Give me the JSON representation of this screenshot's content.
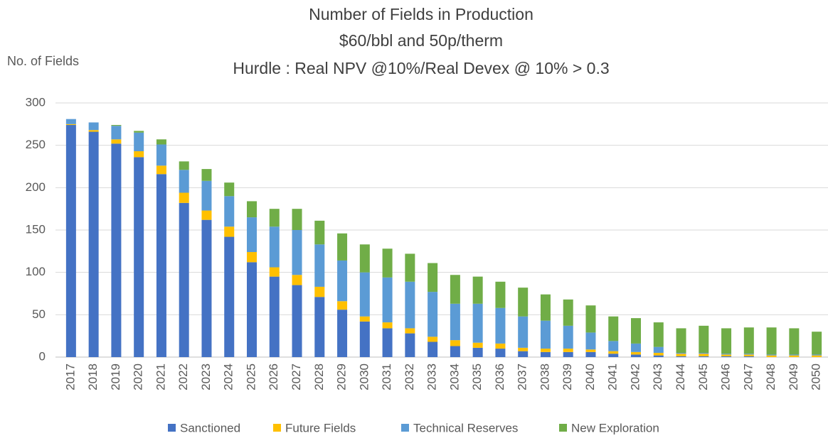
{
  "chart_data": {
    "type": "stacked_bar",
    "title": [
      "Number of Fields in Production",
      "$60/bbl and 50p/therm",
      "Hurdle : Real NPV @10%/Real Devex @ 10% > 0.3"
    ],
    "y_label": "No. of Fields",
    "categories": [
      "2017",
      "2018",
      "2019",
      "2020",
      "2021",
      "2022",
      "2023",
      "2024",
      "2025",
      "2026",
      "2027",
      "2028",
      "2029",
      "2030",
      "2031",
      "2032",
      "2033",
      "2034",
      "2035",
      "2036",
      "2037",
      "2038",
      "2039",
      "2040",
      "2041",
      "2042",
      "2043",
      "2044",
      "2045",
      "2046",
      "2047",
      "2048",
      "2049",
      "2050"
    ],
    "series": [
      {
        "name": "Sanctioned",
        "color": "#4472c4",
        "values": [
          274,
          266,
          252,
          236,
          216,
          182,
          162,
          142,
          112,
          95,
          85,
          71,
          56,
          42,
          34,
          28,
          18,
          13,
          11,
          10,
          7,
          6,
          6,
          6,
          4,
          3,
          2,
          1,
          1,
          1,
          1,
          0,
          0,
          0
        ]
      },
      {
        "name": "Future Fields",
        "color": "#ffc000",
        "values": [
          1,
          2,
          5,
          7,
          10,
          12,
          11,
          12,
          12,
          11,
          12,
          12,
          10,
          6,
          7,
          6,
          6,
          7,
          6,
          6,
          4,
          4,
          4,
          3,
          3,
          3,
          3,
          3,
          3,
          2,
          2,
          2,
          2,
          2
        ]
      },
      {
        "name": "Technical Reserves",
        "color": "#5b9bd5",
        "values": [
          6,
          9,
          16,
          22,
          25,
          27,
          35,
          36,
          41,
          48,
          53,
          50,
          48,
          52,
          53,
          55,
          53,
          43,
          46,
          42,
          37,
          33,
          27,
          20,
          12,
          10,
          7,
          1,
          1,
          1,
          1,
          1,
          1,
          1
        ]
      },
      {
        "name": "New Exploration",
        "color": "#70ad47",
        "values": [
          0,
          0,
          1,
          2,
          6,
          10,
          14,
          16,
          19,
          21,
          25,
          28,
          32,
          33,
          34,
          33,
          34,
          34,
          32,
          31,
          34,
          31,
          31,
          32,
          29,
          30,
          29,
          29,
          32,
          30,
          31,
          32,
          31,
          27
        ]
      }
    ],
    "ylim": [
      0,
      300
    ],
    "yticks": [
      0,
      50,
      100,
      150,
      200,
      250,
      300
    ],
    "grid": true,
    "legend": "bottom"
  }
}
